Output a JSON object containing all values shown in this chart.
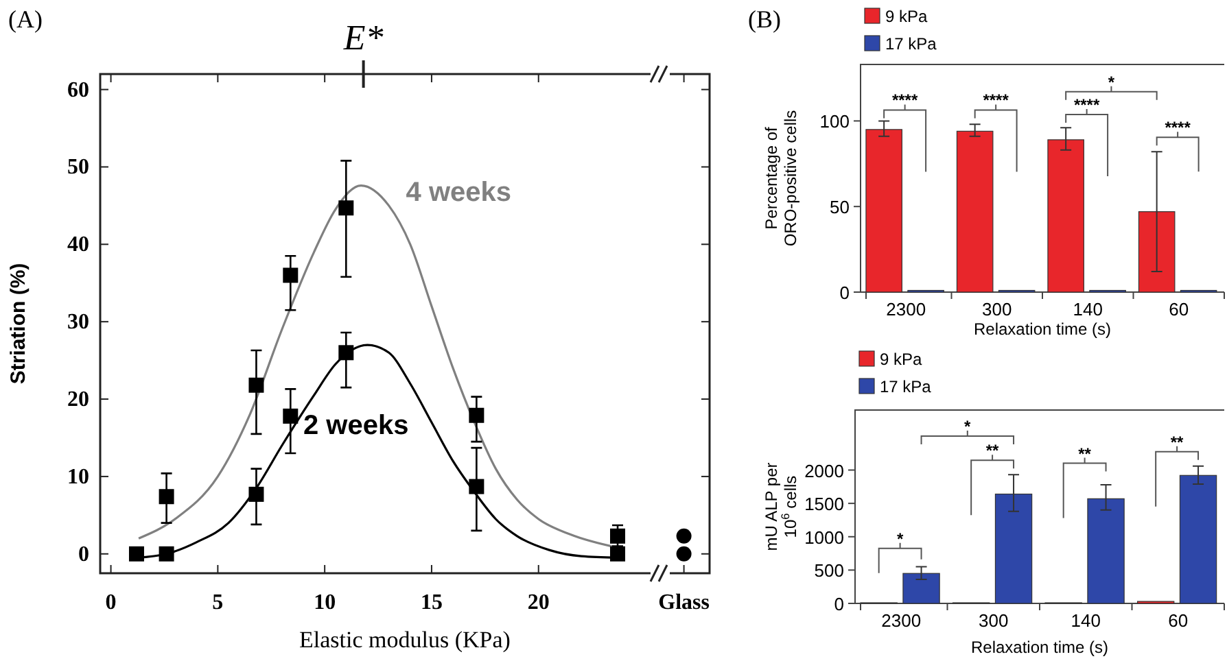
{
  "chart_data": [
    {
      "type": "scatter",
      "title": "(A)",
      "xlabel": "Elastic modulus (KPa)",
      "ylabel": "Striation (%)",
      "xlim": [
        -0.5,
        28
      ],
      "xticks": [
        0,
        5,
        10,
        15,
        20,
        {
          "value": 26.8,
          "label": "Glass"
        }
      ],
      "ylim": [
        -2.5,
        62
      ],
      "yticks": [
        0,
        10,
        20,
        30,
        40,
        50,
        60
      ],
      "annotations": [
        "E*"
      ],
      "series": [
        {
          "type": "line",
          "name": "4 weeks",
          "color": "#808080",
          "x": [
            1.3,
            3,
            5,
            6.5,
            8,
            9.5,
            10.5,
            11.7,
            13,
            14,
            15,
            16,
            17,
            18,
            19,
            20,
            21.5,
            23.7
          ],
          "values": [
            2,
            4.5,
            10,
            18,
            29,
            39,
            44.5,
            47.6,
            45,
            40,
            32,
            24,
            17,
            11,
            7,
            4.5,
            2.5,
            0.8
          ]
        },
        {
          "type": "line",
          "name": "2 weeks",
          "color": "#000000",
          "x": [
            1.2,
            2.6,
            4,
            5.5,
            6.8,
            8,
            9.5,
            10.5,
            12,
            13,
            14,
            15,
            16,
            17,
            18,
            19,
            20.5,
            22,
            23.7
          ],
          "values": [
            -0.5,
            0,
            1.5,
            4,
            8.5,
            14,
            20.5,
            24.5,
            27,
            26,
            22,
            17,
            12,
            8,
            4.5,
            2.3,
            0.5,
            -0.3,
            -0.5
          ]
        },
        {
          "type": "scatter",
          "color": "#000000",
          "marker": "square",
          "x": [
            2.6,
            6.8,
            8.4,
            11,
            17.1,
            23.7
          ],
          "values": [
            7.4,
            21.8,
            36,
            44.7,
            17.9,
            2.3
          ],
          "errors": [
            [
              4,
              10.4
            ],
            [
              15.5,
              26.3
            ],
            [
              31.5,
              38.5
            ],
            [
              35.8,
              50.8
            ],
            [
              14.5,
              20.3
            ],
            [
              1,
              3.7
            ]
          ]
        },
        {
          "type": "scatter",
          "color": "#000000",
          "marker": "square",
          "x": [
            1.2,
            2.6,
            6.8,
            8.4,
            11,
            17.1,
            23.7
          ],
          "values": [
            0,
            0,
            7.7,
            17.8,
            26,
            8.7,
            0
          ],
          "errors": [
            null,
            null,
            [
              3.8,
              11
            ],
            [
              13,
              21.3
            ],
            [
              21.5,
              28.6
            ],
            [
              3,
              13.7
            ],
            null
          ]
        },
        {
          "type": "scatter",
          "color": "#000000",
          "marker": "circle",
          "x": [
            26.8,
            26.8
          ],
          "values": [
            2.3,
            0
          ]
        }
      ]
    },
    {
      "type": "bar",
      "title": "(B)",
      "xlabel": "Relaxation time (s)",
      "ylabel": "Percentage of ORO-positive cells",
      "categories": [
        "2300",
        "300",
        "140",
        "60"
      ],
      "ylim": [
        0,
        133
      ],
      "yticks": [
        0,
        50,
        100
      ],
      "legend": "top left",
      "series": [
        {
          "name": "9 kPa",
          "color": "#e8262b",
          "values": [
            95,
            94,
            89,
            47
          ],
          "errors": [
            [
              91,
              100
            ],
            [
              91,
              98
            ],
            [
              83,
              96
            ],
            [
              12,
              82
            ]
          ]
        },
        {
          "name": "17 kPa",
          "color": "#2e47a8",
          "values": [
            1,
            1,
            1,
            1
          ]
        }
      ],
      "annotations": [
        "****",
        "****",
        "****",
        "****",
        "*"
      ]
    },
    {
      "type": "bar",
      "xlabel": "Relaxation time (s)",
      "ylabel": "mU ALP per 10$^{6}$ cells",
      "categories": [
        "2300",
        "300",
        "140",
        "60"
      ],
      "ylim": [
        0,
        2900
      ],
      "yticks": [
        0,
        500,
        1000,
        1500,
        2000
      ],
      "legend": "top left",
      "series": [
        {
          "name": "9 kPa",
          "color": "#e8262b",
          "values": [
            10,
            10,
            10,
            30
          ]
        },
        {
          "name": "17 kPa",
          "color": "#2e47a8",
          "values": [
            450,
            1640,
            1570,
            1920
          ],
          "errors": [
            [
              360,
              550
            ],
            [
              1380,
              1930
            ],
            [
              1400,
              1780
            ],
            [
              1790,
              2060
            ]
          ]
        }
      ],
      "annotations": [
        "*",
        "**",
        "*",
        "**",
        "**"
      ]
    }
  ]
}
